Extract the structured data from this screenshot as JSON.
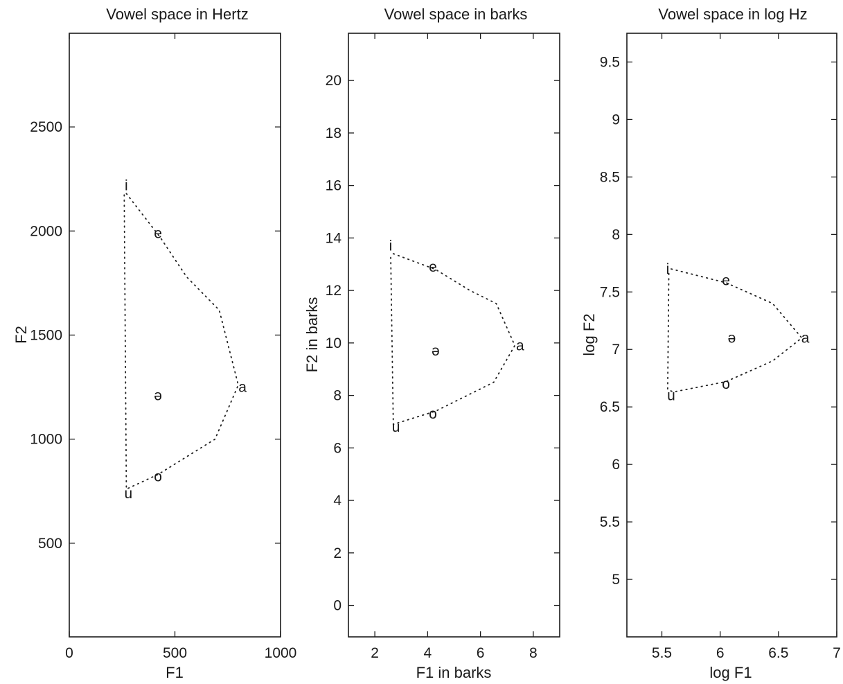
{
  "chart_data": [
    {
      "type": "scatter",
      "title": "Vowel space in Hertz",
      "xlabel": "F1",
      "ylabel": "F2",
      "xlim": [
        0,
        1000
      ],
      "ylim": [
        50,
        2950
      ],
      "xticks": [
        0,
        500,
        1000
      ],
      "xtick_labels": [
        "0",
        "500",
        "1000"
      ],
      "yticks": [
        500,
        1000,
        1500,
        2000,
        2500
      ],
      "ytick_labels": [
        "500",
        "1000",
        "1500",
        "2000",
        "2500"
      ],
      "grid": false,
      "points": [
        {
          "label": "i",
          "x": 270,
          "y": 2220
        },
        {
          "label": "e",
          "x": 420,
          "y": 1990
        },
        {
          "label": "a",
          "x": 820,
          "y": 1250
        },
        {
          "label": "ə",
          "x": 420,
          "y": 1210
        },
        {
          "label": "o",
          "x": 420,
          "y": 820
        },
        {
          "label": "u",
          "x": 280,
          "y": 740
        }
      ],
      "outline": [
        {
          "x": 270,
          "y": 2180
        },
        {
          "x": 430,
          "y": 1970
        },
        {
          "x": 555,
          "y": 1780
        },
        {
          "x": 710,
          "y": 1620
        },
        {
          "x": 800,
          "y": 1260
        },
        {
          "x": 690,
          "y": 1000
        },
        {
          "x": 420,
          "y": 830
        },
        {
          "x": 270,
          "y": 760
        },
        {
          "x": 260,
          "y": 2180
        }
      ]
    },
    {
      "type": "scatter",
      "title": "Vowel space in barks",
      "xlabel": "F1 in barks",
      "ylabel": "F2 in barks",
      "xlim": [
        1,
        9
      ],
      "ylim": [
        -1.2,
        21.8
      ],
      "xticks": [
        2,
        4,
        6,
        8
      ],
      "xtick_labels": [
        "2",
        "4",
        "6",
        "8"
      ],
      "yticks": [
        0,
        2,
        4,
        6,
        8,
        10,
        12,
        14,
        16,
        18,
        20
      ],
      "ytick_labels": [
        "0",
        "2",
        "4",
        "6",
        "8",
        "10",
        "12",
        "14",
        "16",
        "18",
        "20"
      ],
      "grid": false,
      "points": [
        {
          "label": "i",
          "x": 2.6,
          "y": 13.7
        },
        {
          "label": "e",
          "x": 4.2,
          "y": 12.9
        },
        {
          "label": "a",
          "x": 7.5,
          "y": 9.9
        },
        {
          "label": "ə",
          "x": 4.3,
          "y": 9.7
        },
        {
          "label": "o",
          "x": 4.2,
          "y": 7.3
        },
        {
          "label": "u",
          "x": 2.8,
          "y": 6.8
        }
      ],
      "outline": [
        {
          "x": 2.7,
          "y": 13.4
        },
        {
          "x": 4.3,
          "y": 12.8
        },
        {
          "x": 5.6,
          "y": 12.0
        },
        {
          "x": 6.6,
          "y": 11.5
        },
        {
          "x": 7.3,
          "y": 9.9
        },
        {
          "x": 6.5,
          "y": 8.5
        },
        {
          "x": 4.3,
          "y": 7.4
        },
        {
          "x": 2.7,
          "y": 6.9
        },
        {
          "x": 2.6,
          "y": 13.4
        }
      ]
    },
    {
      "type": "scatter",
      "title": "Vowel space in log Hz",
      "xlabel": "log F1",
      "ylabel": "log F2",
      "xlim": [
        5.2,
        7
      ],
      "ylim": [
        4.5,
        9.75
      ],
      "xticks": [
        5.5,
        6,
        6.5,
        7
      ],
      "xtick_labels": [
        "5.5",
        "6",
        "6.5",
        "7"
      ],
      "yticks": [
        5,
        5.5,
        6,
        6.5,
        7,
        7.5,
        8,
        8.5,
        9,
        9.5
      ],
      "ytick_labels": [
        "5",
        "5.5",
        "6",
        "6.5",
        "7",
        "7.5",
        "8",
        "8.5",
        "9",
        "9.5"
      ],
      "grid": false,
      "points": [
        {
          "label": "i",
          "x": 5.55,
          "y": 7.7
        },
        {
          "label": "e",
          "x": 6.05,
          "y": 7.6
        },
        {
          "label": "a",
          "x": 6.73,
          "y": 7.1
        },
        {
          "label": "ə",
          "x": 6.1,
          "y": 7.1
        },
        {
          "label": "o",
          "x": 6.05,
          "y": 6.7
        },
        {
          "label": "u",
          "x": 5.58,
          "y": 6.6
        }
      ],
      "outline": [
        {
          "x": 5.58,
          "y": 7.7
        },
        {
          "x": 6.05,
          "y": 7.58
        },
        {
          "x": 6.45,
          "y": 7.4
        },
        {
          "x": 6.7,
          "y": 7.1
        },
        {
          "x": 6.45,
          "y": 6.9
        },
        {
          "x": 6.05,
          "y": 6.72
        },
        {
          "x": 5.6,
          "y": 6.63
        },
        {
          "x": 5.55,
          "y": 6.65
        },
        {
          "x": 5.56,
          "y": 7.68
        }
      ]
    }
  ]
}
